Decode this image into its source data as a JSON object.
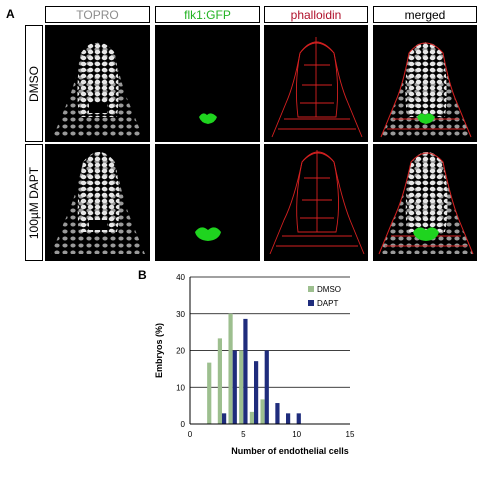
{
  "panel_a": {
    "letter": "A",
    "columns": [
      {
        "label": "TOPRO",
        "color": "#8c8c8c"
      },
      {
        "label": "flk1:GFP",
        "color": "#22b322"
      },
      {
        "label": "phalloidin",
        "color": "#b0102a"
      },
      {
        "label": "merged",
        "color": "#000000"
      }
    ],
    "rows": [
      {
        "label": "DMSO"
      },
      {
        "label": "100µM DAPT"
      }
    ]
  },
  "panel_b": {
    "letter": "B"
  },
  "chart_data": {
    "type": "bar",
    "title": "",
    "xlabel": "Number of endothelial cells",
    "ylabel": "Embryos (%)",
    "xlim": [
      0,
      15
    ],
    "ylim": [
      0,
      40
    ],
    "xticks": [
      0,
      5,
      10,
      15
    ],
    "yticks": [
      0,
      10,
      20,
      30,
      40
    ],
    "grid": "horizontal",
    "legend_position": "top-right",
    "series": [
      {
        "name": "DMSO",
        "color": "#9dbf8f",
        "points": [
          [
            2,
            16.7
          ],
          [
            3,
            23.3
          ],
          [
            4,
            30.0
          ],
          [
            5,
            20.0
          ],
          [
            6,
            3.3
          ],
          [
            7,
            6.7
          ]
        ]
      },
      {
        "name": "DAPT",
        "color": "#1f2c7c",
        "points": [
          [
            3,
            2.9
          ],
          [
            4,
            20.0
          ],
          [
            5,
            28.6
          ],
          [
            6,
            17.1
          ],
          [
            7,
            20.0
          ],
          [
            8,
            5.7
          ],
          [
            9,
            2.9
          ],
          [
            10,
            2.9
          ]
        ]
      }
    ]
  }
}
